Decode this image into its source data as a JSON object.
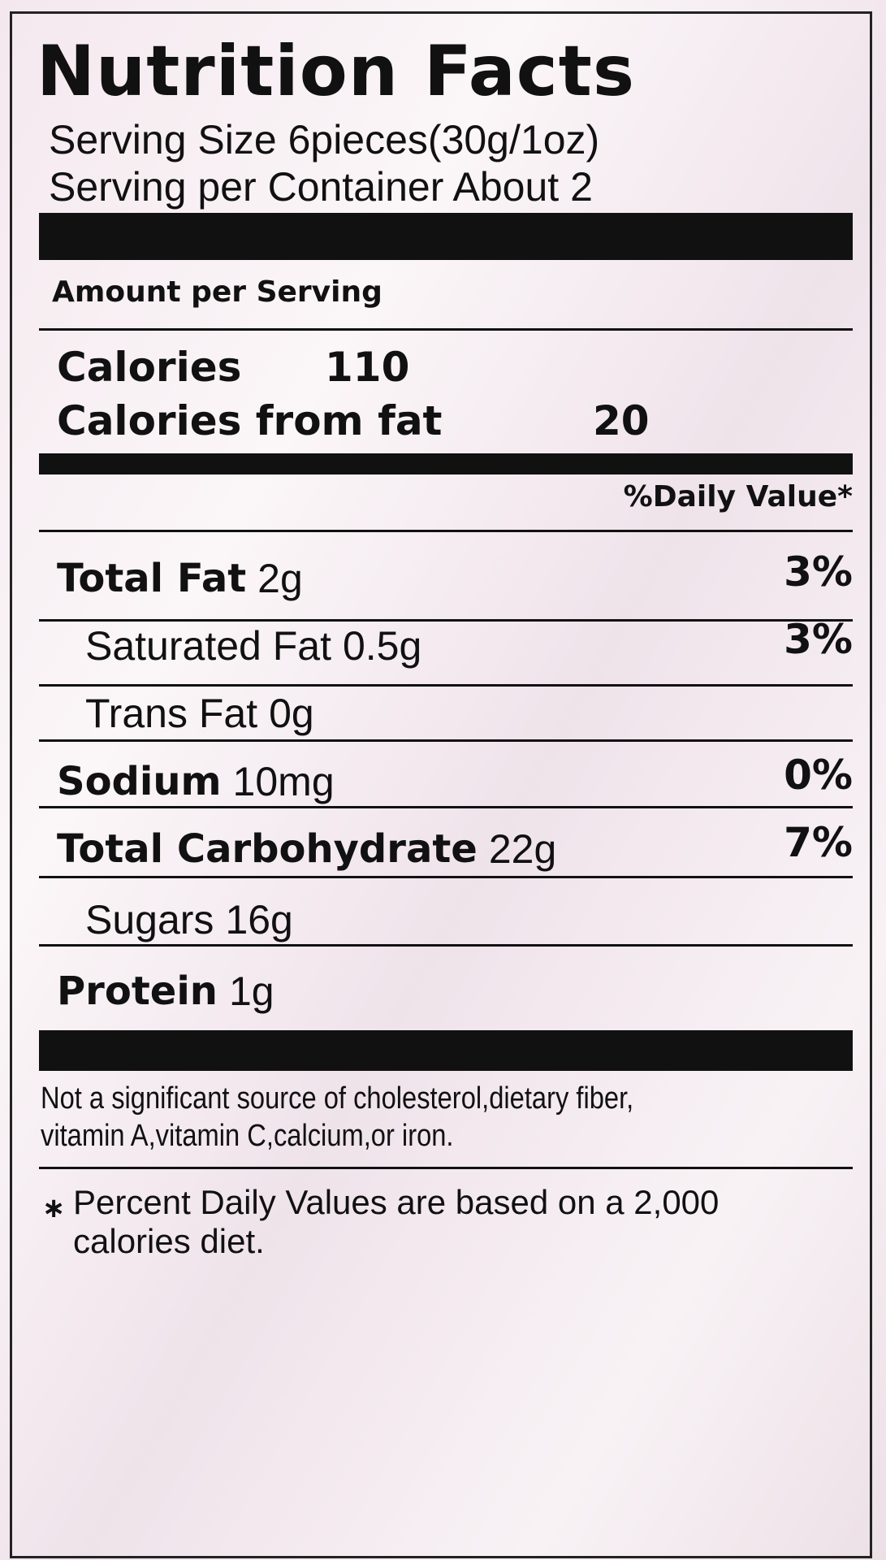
{
  "label": {
    "title": "Nutrition Facts",
    "serving_size": "Serving Size 6pieces(30g/1oz)",
    "servings_per_container": "Serving per Container About 2",
    "amount_per_serving": "Amount per Serving",
    "calories": {
      "label": "Calories",
      "value": 110
    },
    "calories_from_fat": {
      "label": "Calories from fat",
      "value": 20
    },
    "daily_value_header": "%Daily Value*",
    "nutrients": [
      {
        "name": "Total Fat",
        "amount": "2g",
        "dv": "3%",
        "bold": true,
        "indent": false
      },
      {
        "name": "Saturated Fat",
        "amount": "0.5g",
        "dv": "3%",
        "bold": false,
        "indent": true
      },
      {
        "name": "Trans Fat",
        "amount": "0g",
        "bold": false,
        "indent": true
      },
      {
        "name": "Sodium",
        "amount": "10mg",
        "dv": "0%",
        "bold": true,
        "indent": false
      },
      {
        "name": "Total Carbohydrate",
        "amount": "22g",
        "dv": "7%",
        "bold": true,
        "indent": false
      },
      {
        "name": "Sugars",
        "amount": "16g",
        "bold": false,
        "indent": true
      },
      {
        "name": "Protein",
        "amount": "1g",
        "bold": true,
        "indent": false
      }
    ],
    "note": [
      "Not a significant source of cholesterol,dietary fiber,",
      "vitamin A,vitamin C,calcium,or iron."
    ],
    "footnote": [
      "Percent Daily Values are based on a 2,000",
      "calories diet."
    ]
  }
}
